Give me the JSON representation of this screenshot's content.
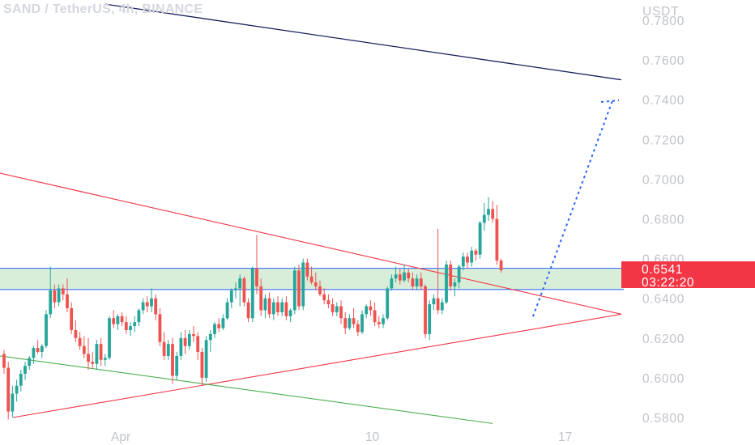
{
  "header": {
    "title": "SAND / TetherUS, 4h, BINANCE"
  },
  "price_axis": {
    "currency": "USDT",
    "ticks": [
      "0.7800",
      "0.7600",
      "0.7400",
      "0.7200",
      "0.7000",
      "0.6800",
      "0.6600",
      "0.6400",
      "0.6200",
      "0.6000",
      "0.5800"
    ]
  },
  "time_axis": {
    "ticks": [
      "Apr",
      "10",
      "17"
    ]
  },
  "last_price": {
    "value": "0.6541",
    "countdown": "03:22:20"
  },
  "colors": {
    "bull": "#26a69a",
    "bear": "#ef5350",
    "zone_fill": "#d9eed9",
    "zone_line": "#2962ff",
    "trend_red": "#f23645",
    "trend_green": "#4caf50",
    "trend_navy": "#1a1f5a",
    "projection": "#2962ff",
    "price_badge": "#f23645"
  },
  "chart_data": {
    "type": "candlestick",
    "symbol": "SAND / TetherUS",
    "interval": "4h",
    "exchange": "BINANCE",
    "ylim": [
      0.5747,
      0.7845
    ],
    "resistance_zone": [
      0.6444,
      0.6551
    ],
    "candles_ohlc": [
      [
        0.612,
        0.614,
        0.602,
        0.605
      ],
      [
        0.605,
        0.608,
        0.579,
        0.583
      ],
      [
        0.583,
        0.596,
        0.58,
        0.592
      ],
      [
        0.592,
        0.599,
        0.588,
        0.596
      ],
      [
        0.596,
        0.604,
        0.593,
        0.602
      ],
      [
        0.602,
        0.608,
        0.599,
        0.606
      ],
      [
        0.606,
        0.611,
        0.604,
        0.61
      ],
      [
        0.61,
        0.616,
        0.607,
        0.615
      ],
      [
        0.615,
        0.619,
        0.612,
        0.613
      ],
      [
        0.613,
        0.617,
        0.61,
        0.616
      ],
      [
        0.616,
        0.634,
        0.615,
        0.632
      ],
      [
        0.632,
        0.656,
        0.63,
        0.644
      ],
      [
        0.644,
        0.647,
        0.635,
        0.638
      ],
      [
        0.638,
        0.647,
        0.636,
        0.645
      ],
      [
        0.645,
        0.647,
        0.639,
        0.642
      ],
      [
        0.642,
        0.65,
        0.633,
        0.635
      ],
      [
        0.635,
        0.638,
        0.622,
        0.624
      ],
      [
        0.624,
        0.629,
        0.618,
        0.62
      ],
      [
        0.62,
        0.623,
        0.614,
        0.616
      ],
      [
        0.616,
        0.621,
        0.61,
        0.612
      ],
      [
        0.612,
        0.62,
        0.604,
        0.608
      ],
      [
        0.608,
        0.613,
        0.605,
        0.607
      ],
      [
        0.607,
        0.619,
        0.604,
        0.617
      ],
      [
        0.617,
        0.62,
        0.606,
        0.609
      ],
      [
        0.609,
        0.612,
        0.606,
        0.61
      ],
      [
        0.61,
        0.631,
        0.609,
        0.63
      ],
      [
        0.63,
        0.634,
        0.625,
        0.627
      ],
      [
        0.627,
        0.632,
        0.624,
        0.631
      ],
      [
        0.631,
        0.633,
        0.626,
        0.628
      ],
      [
        0.628,
        0.631,
        0.622,
        0.624
      ],
      [
        0.624,
        0.628,
        0.621,
        0.626
      ],
      [
        0.626,
        0.631,
        0.623,
        0.628
      ],
      [
        0.628,
        0.635,
        0.626,
        0.634
      ],
      [
        0.634,
        0.64,
        0.632,
        0.638
      ],
      [
        0.638,
        0.641,
        0.633,
        0.636
      ],
      [
        0.636,
        0.645,
        0.633,
        0.64
      ],
      [
        0.64,
        0.642,
        0.629,
        0.632
      ],
      [
        0.632,
        0.635,
        0.616,
        0.618
      ],
      [
        0.618,
        0.623,
        0.609,
        0.611
      ],
      [
        0.611,
        0.619,
        0.609,
        0.617
      ],
      [
        0.617,
        0.62,
        0.597,
        0.601
      ],
      [
        0.601,
        0.613,
        0.599,
        0.611
      ],
      [
        0.611,
        0.623,
        0.609,
        0.62
      ],
      [
        0.62,
        0.624,
        0.612,
        0.616
      ],
      [
        0.616,
        0.624,
        0.614,
        0.622
      ],
      [
        0.622,
        0.626,
        0.618,
        0.621
      ],
      [
        0.621,
        0.623,
        0.609,
        0.613
      ],
      [
        0.613,
        0.615,
        0.596,
        0.6
      ],
      [
        0.6,
        0.621,
        0.598,
        0.619
      ],
      [
        0.619,
        0.624,
        0.613,
        0.622
      ],
      [
        0.622,
        0.628,
        0.62,
        0.627
      ],
      [
        0.627,
        0.63,
        0.623,
        0.625
      ],
      [
        0.625,
        0.632,
        0.624,
        0.63
      ],
      [
        0.63,
        0.64,
        0.629,
        0.638
      ],
      [
        0.638,
        0.645,
        0.635,
        0.644
      ],
      [
        0.644,
        0.648,
        0.64,
        0.645
      ],
      [
        0.645,
        0.652,
        0.636,
        0.65
      ],
      [
        0.65,
        0.651,
        0.636,
        0.638
      ],
      [
        0.638,
        0.64,
        0.628,
        0.63
      ],
      [
        0.63,
        0.656,
        0.628,
        0.655
      ],
      [
        0.655,
        0.672,
        0.642,
        0.646
      ],
      [
        0.646,
        0.65,
        0.631,
        0.634
      ],
      [
        0.634,
        0.642,
        0.63,
        0.64
      ],
      [
        0.64,
        0.643,
        0.63,
        0.632
      ],
      [
        0.632,
        0.64,
        0.629,
        0.638
      ],
      [
        0.638,
        0.641,
        0.631,
        0.633
      ],
      [
        0.633,
        0.64,
        0.631,
        0.638
      ],
      [
        0.638,
        0.641,
        0.629,
        0.631
      ],
      [
        0.631,
        0.635,
        0.628,
        0.634
      ],
      [
        0.634,
        0.656,
        0.632,
        0.654
      ],
      [
        0.654,
        0.657,
        0.634,
        0.636
      ],
      [
        0.636,
        0.66,
        0.634,
        0.658
      ],
      [
        0.658,
        0.66,
        0.649,
        0.651
      ],
      [
        0.651,
        0.656,
        0.647,
        0.648
      ],
      [
        0.648,
        0.653,
        0.644,
        0.646
      ],
      [
        0.646,
        0.649,
        0.641,
        0.642
      ],
      [
        0.642,
        0.645,
        0.637,
        0.639
      ],
      [
        0.639,
        0.642,
        0.635,
        0.637
      ],
      [
        0.637,
        0.64,
        0.631,
        0.633
      ],
      [
        0.633,
        0.638,
        0.631,
        0.636
      ],
      [
        0.636,
        0.639,
        0.627,
        0.63
      ],
      [
        0.63,
        0.633,
        0.622,
        0.625
      ],
      [
        0.625,
        0.632,
        0.624,
        0.63
      ],
      [
        0.63,
        0.635,
        0.625,
        0.627
      ],
      [
        0.627,
        0.629,
        0.621,
        0.623
      ],
      [
        0.623,
        0.634,
        0.622,
        0.632
      ],
      [
        0.632,
        0.637,
        0.63,
        0.636
      ],
      [
        0.636,
        0.639,
        0.631,
        0.634
      ],
      [
        0.634,
        0.638,
        0.626,
        0.628
      ],
      [
        0.628,
        0.631,
        0.625,
        0.627
      ],
      [
        0.627,
        0.632,
        0.625,
        0.63
      ],
      [
        0.63,
        0.646,
        0.629,
        0.645
      ],
      [
        0.645,
        0.652,
        0.644,
        0.65
      ],
      [
        0.65,
        0.656,
        0.648,
        0.652
      ],
      [
        0.652,
        0.655,
        0.647,
        0.649
      ],
      [
        0.649,
        0.657,
        0.648,
        0.653
      ],
      [
        0.653,
        0.655,
        0.648,
        0.65
      ],
      [
        0.65,
        0.653,
        0.644,
        0.646
      ],
      [
        0.646,
        0.652,
        0.644,
        0.65
      ],
      [
        0.65,
        0.653,
        0.644,
        0.646
      ],
      [
        0.646,
        0.647,
        0.62,
        0.622
      ],
      [
        0.622,
        0.639,
        0.619,
        0.637
      ],
      [
        0.637,
        0.642,
        0.634,
        0.64
      ],
      [
        0.64,
        0.675,
        0.632,
        0.634
      ],
      [
        0.634,
        0.64,
        0.632,
        0.638
      ],
      [
        0.638,
        0.659,
        0.637,
        0.657
      ],
      [
        0.657,
        0.659,
        0.644,
        0.646
      ],
      [
        0.646,
        0.65,
        0.641,
        0.648
      ],
      [
        0.648,
        0.657,
        0.645,
        0.656
      ],
      [
        0.656,
        0.663,
        0.654,
        0.661
      ],
      [
        0.661,
        0.663,
        0.655,
        0.658
      ],
      [
        0.658,
        0.666,
        0.656,
        0.664
      ],
      [
        0.664,
        0.665,
        0.659,
        0.662
      ],
      [
        0.662,
        0.679,
        0.66,
        0.678
      ],
      [
        0.678,
        0.688,
        0.674,
        0.682
      ],
      [
        0.682,
        0.691,
        0.679,
        0.685
      ],
      [
        0.685,
        0.689,
        0.678,
        0.68
      ],
      [
        0.68,
        0.687,
        0.657,
        0.659
      ],
      [
        0.659,
        0.66,
        0.653,
        0.6541
      ]
    ],
    "overlays": {
      "navy_trendline": [
        [
          0.7881,
          0.75
        ]
      ],
      "triangle_upper": [
        [
          0.703,
          0.632
        ]
      ],
      "triangle_lower": [
        [
          0.58,
          0.632
        ]
      ],
      "green_line": [
        [
          0.611,
          0.577
        ]
      ],
      "projection_target": 0.7406
    }
  }
}
